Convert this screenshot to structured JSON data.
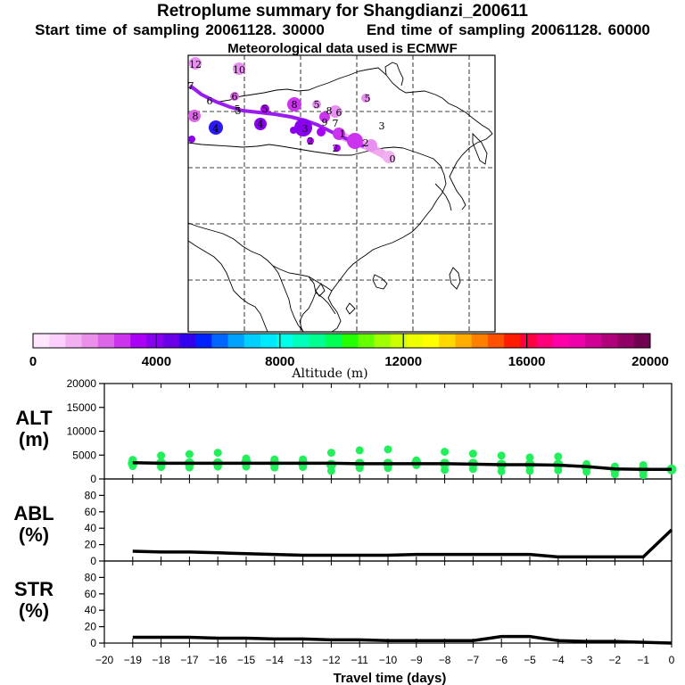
{
  "header": {
    "title": "Retroplume summary for Shangdianzi_200611",
    "subtitle_start": "Start time of sampling 20061128. 30000",
    "subtitle_end": "End time of sampling 20061128. 60000",
    "met_note": "Meteorological data used is ECMWF"
  },
  "colorbar": {
    "ticks": [
      "0",
      "4000",
      "8000",
      "12000",
      "16000",
      "20000"
    ],
    "label": "Altitude (m)",
    "colors": [
      "#ffe6ff",
      "#fbcffb",
      "#f2b0f2",
      "#ea8fea",
      "#dd66e8",
      "#cc33ee",
      "#aa00f5",
      "#8800ee",
      "#6a00e8",
      "#3300ee",
      "#0022ff",
      "#0066ff",
      "#00a2ff",
      "#00cfff",
      "#00eaff",
      "#00ffe8",
      "#00ffbb",
      "#00ff90",
      "#00ff55",
      "#22ff00",
      "#66ff00",
      "#a0ff00",
      "#ccff00",
      "#eeff00",
      "#ffff00",
      "#ffd800",
      "#ffae00",
      "#ff8000",
      "#ff5000",
      "#ff1c00",
      "#ff0040",
      "#ff007a",
      "#ff00a8",
      "#ee00aa",
      "#d00094",
      "#b0007a",
      "#900064",
      "#700050"
    ]
  },
  "map": {
    "labels": [
      {
        "t": "12",
        "c": "#e890f0"
      },
      {
        "t": "10",
        "c": "#e890f0"
      },
      {
        "t": "7",
        "c": "#aa00f5"
      },
      {
        "t": "6",
        "c": "#aa00f5"
      },
      {
        "t": "6",
        "c": "#dd66e8"
      },
      {
        "t": "5",
        "c": "#aa00f5"
      },
      {
        "t": "5",
        "c": "#dd66e8"
      },
      {
        "t": "8",
        "c": "#cc33ee"
      },
      {
        "t": "5",
        "c": "#e890f0"
      },
      {
        "t": "5",
        "c": "#e890f0"
      },
      {
        "t": "4",
        "c": "#aa00f5"
      },
      {
        "t": "4",
        "c": "#2a1af0"
      },
      {
        "t": "3",
        "c": "#aa00f5"
      },
      {
        "t": "3",
        "c": "#dd66e8"
      },
      {
        "t": "2",
        "c": "#aa00f5"
      },
      {
        "t": "9",
        "c": "#8800ee"
      },
      {
        "t": "8",
        "c": "#cc33ee"
      },
      {
        "t": "7",
        "c": "#e890f0"
      },
      {
        "t": "6",
        "c": "#e890f0"
      },
      {
        "t": "1",
        "c": "#cc33ee"
      },
      {
        "t": "2",
        "c": "#dd66e8"
      },
      {
        "t": "2",
        "c": "#e890f0"
      },
      {
        "t": "0",
        "c": "#f2b0f2"
      },
      {
        "t": "5",
        "c": "#dd66e8"
      },
      {
        "t": "8",
        "c": "#dd66e8"
      }
    ]
  },
  "chart_data": [
    {
      "type": "scatter",
      "panel": "ALT",
      "ylabel": "ALT (m)",
      "ylim": [
        0,
        20000
      ],
      "yticks": [
        "0",
        "5000",
        "10000",
        "15000",
        "20000"
      ],
      "x": [
        -19,
        -18,
        -17,
        -16,
        -15,
        -14,
        -13,
        -12,
        -11,
        -10,
        -9,
        -8,
        -7,
        -6,
        -5,
        -4,
        -3,
        -2,
        -1,
        0
      ],
      "mean_altitude": [
        3400,
        3300,
        3300,
        3300,
        3300,
        3300,
        3300,
        3300,
        3200,
        3200,
        3200,
        3200,
        3100,
        3000,
        3000,
        2900,
        2600,
        2100,
        2000,
        2000
      ],
      "points": [
        {
          "x": -19,
          "y": 3300
        },
        {
          "x": -19,
          "y": 2700
        },
        {
          "x": -19,
          "y": 4000
        },
        {
          "x": -18,
          "y": 3300
        },
        {
          "x": -18,
          "y": 2500
        },
        {
          "x": -18,
          "y": 4900
        },
        {
          "x": -17,
          "y": 3300
        },
        {
          "x": -17,
          "y": 2400
        },
        {
          "x": -17,
          "y": 5200
        },
        {
          "x": -16,
          "y": 3300
        },
        {
          "x": -16,
          "y": 2600
        },
        {
          "x": -16,
          "y": 5500
        },
        {
          "x": -15,
          "y": 3500
        },
        {
          "x": -15,
          "y": 2600
        },
        {
          "x": -15,
          "y": 4300
        },
        {
          "x": -14,
          "y": 3300
        },
        {
          "x": -14,
          "y": 2400
        },
        {
          "x": -14,
          "y": 4100
        },
        {
          "x": -13,
          "y": 3300
        },
        {
          "x": -13,
          "y": 2500
        },
        {
          "x": -13,
          "y": 4100
        },
        {
          "x": -12,
          "y": 3000
        },
        {
          "x": -12,
          "y": 1700
        },
        {
          "x": -12,
          "y": 5500
        },
        {
          "x": -11,
          "y": 3200
        },
        {
          "x": -11,
          "y": 2300
        },
        {
          "x": -11,
          "y": 6000
        },
        {
          "x": -10,
          "y": 3200
        },
        {
          "x": -10,
          "y": 2300
        },
        {
          "x": -10,
          "y": 6200
        },
        {
          "x": -9,
          "y": 3400
        },
        {
          "x": -9,
          "y": 2900
        },
        {
          "x": -9,
          "y": 3900
        },
        {
          "x": -8,
          "y": 3200
        },
        {
          "x": -8,
          "y": 1900
        },
        {
          "x": -8,
          "y": 5700
        },
        {
          "x": -7,
          "y": 3200
        },
        {
          "x": -7,
          "y": 2100
        },
        {
          "x": -7,
          "y": 5300
        },
        {
          "x": -6,
          "y": 3000
        },
        {
          "x": -6,
          "y": 1600
        },
        {
          "x": -6,
          "y": 4900
        },
        {
          "x": -5,
          "y": 3000
        },
        {
          "x": -5,
          "y": 1700
        },
        {
          "x": -5,
          "y": 4500
        },
        {
          "x": -4,
          "y": 3000
        },
        {
          "x": -4,
          "y": 1800
        },
        {
          "x": -4,
          "y": 4700
        },
        {
          "x": -3,
          "y": 2500
        },
        {
          "x": -3,
          "y": 1500
        },
        {
          "x": -3,
          "y": 3100
        },
        {
          "x": -2,
          "y": 2000
        },
        {
          "x": -2,
          "y": 1000
        },
        {
          "x": -2,
          "y": 2600
        },
        {
          "x": -1,
          "y": 2000
        },
        {
          "x": -1,
          "y": 800
        },
        {
          "x": -1,
          "y": 2900
        },
        {
          "x": 0,
          "y": 2000
        }
      ]
    },
    {
      "type": "line",
      "panel": "ABL",
      "ylabel": "ABL (%)",
      "ylim": [
        0,
        100
      ],
      "yticks": [
        "0",
        "20",
        "40",
        "60",
        "80"
      ],
      "x": [
        -19,
        -18,
        -17,
        -16,
        -15,
        -14,
        -13,
        -12,
        -11,
        -10,
        -9,
        -8,
        -7,
        -6,
        -5,
        -4,
        -3,
        -2,
        -1,
        0
      ],
      "values": [
        12,
        11,
        11,
        10,
        9,
        8,
        7,
        7,
        7,
        7,
        8,
        8,
        8,
        8,
        8,
        5,
        5,
        5,
        5,
        38
      ]
    },
    {
      "type": "line",
      "panel": "STR",
      "ylabel": "STR (%)",
      "ylim": [
        0,
        100
      ],
      "yticks": [
        "0",
        "20",
        "40",
        "60",
        "80"
      ],
      "x": [
        -19,
        -18,
        -17,
        -16,
        -15,
        -14,
        -13,
        -12,
        -11,
        -10,
        -9,
        -8,
        -7,
        -6,
        -5,
        -4,
        -3,
        -2,
        -1,
        0
      ],
      "values": [
        7,
        7,
        7,
        6,
        6,
        5,
        5,
        4,
        4,
        3,
        3,
        3,
        3,
        8,
        8,
        3,
        2,
        2,
        1,
        0
      ]
    }
  ],
  "xaxis": {
    "label": "Travel time (days)",
    "ticks": [
      "−20",
      "−19",
      "−18",
      "−17",
      "−16",
      "−15",
      "−14",
      "−13",
      "−12",
      "−11",
      "−10",
      "−9",
      "−8",
      "−7",
      "−6",
      "−5",
      "−4",
      "−3",
      "−2",
      "−1",
      "0"
    ]
  },
  "panel_labels": {
    "alt": "ALT",
    "alt_unit": "(m)",
    "abl": "ABL",
    "abl_unit": "(%)",
    "str": "STR",
    "str_unit": "(%)"
  },
  "style": {
    "marker": "#22f05a",
    "line": "#000000",
    "plume": "#9a1cf0",
    "plume_tail": "#f0a0ec"
  }
}
